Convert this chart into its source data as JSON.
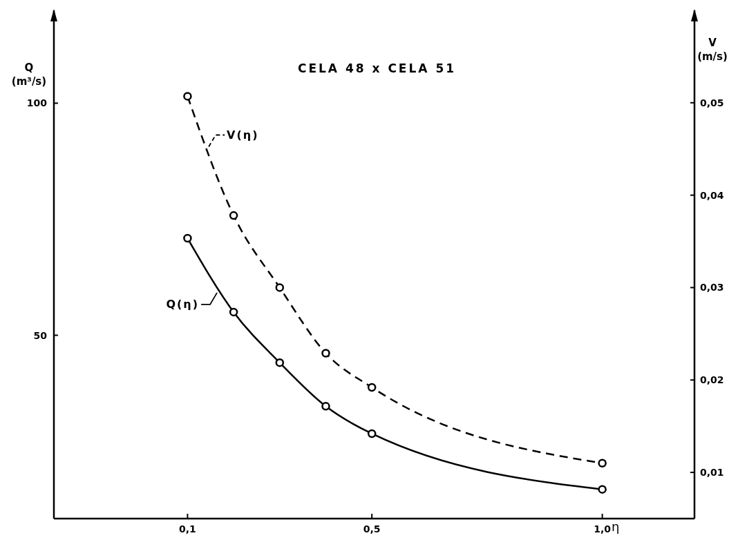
{
  "chart_data": {
    "type": "line",
    "title": "CELA 48 x CELA 51",
    "xlabel": "η",
    "ylabel": "Q (m³/s)",
    "y2label": "V (m/s)",
    "x": [
      0.1,
      0.2,
      0.3,
      0.4,
      0.5,
      1.0
    ],
    "xlim": [
      -0.19,
      1.2
    ],
    "xticks": [
      {
        "value": 0.1,
        "label": "0,1"
      },
      {
        "value": 0.5,
        "label": "0,5"
      },
      {
        "value": 1.0,
        "label": "1,0"
      }
    ],
    "ylim": [
      10.5,
      120
    ],
    "yticks": [
      50,
      100
    ],
    "y2lim": [
      0.005,
      0.06
    ],
    "y2ticks": [
      {
        "value": 0.01,
        "label": "0,01"
      },
      {
        "value": 0.02,
        "label": "0,02"
      },
      {
        "value": 0.03,
        "label": "0,03"
      },
      {
        "value": 0.04,
        "label": "0,04"
      },
      {
        "value": 0.05,
        "label": "0,05"
      }
    ],
    "series": [
      {
        "name": "V(η)",
        "color": "#000000",
        "axis": "y2",
        "line_style": "dashed",
        "values": [
          0.0507,
          0.0378,
          0.03,
          0.0229,
          0.0192,
          0.011
        ]
      },
      {
        "name": "Q(η)",
        "color": "#000000",
        "line_style": "solid",
        "values": [
          70.9,
          55.0,
          44.1,
          34.7,
          28.8,
          16.8
        ]
      }
    ],
    "marker": "circle",
    "grid": false
  }
}
